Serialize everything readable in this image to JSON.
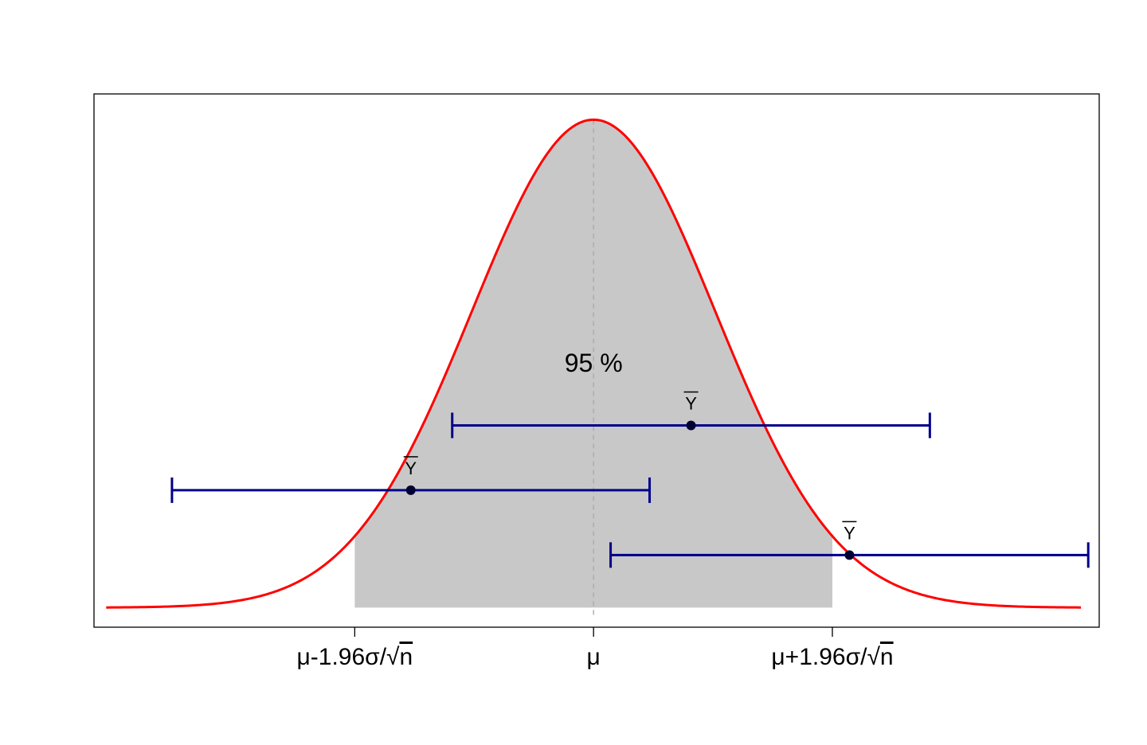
{
  "chart_data": {
    "type": "line",
    "title": "",
    "xlabel": "",
    "ylabel": "",
    "xlim": [
      -4.1,
      4.15
    ],
    "ylim": [
      -0.016,
      0.42
    ],
    "curve": {
      "name": "",
      "mean": 0,
      "sd": 1,
      "x_range": [
        -4,
        4
      ],
      "color": "#ff0000"
    },
    "shaded_region": {
      "from": -1.96,
      "to": 1.96,
      "color": "#c8c8c8",
      "label": "95 %",
      "label_pos": [
        0,
        0.2
      ]
    },
    "center_line": {
      "x": 0,
      "color": "#aaaaaa"
    },
    "x_ticks": [
      {
        "value": -1.96,
        "label_parts": [
          "μ-1.96σ/",
          "√",
          "n"
        ]
      },
      {
        "value": 0,
        "label_parts": [
          "μ",
          "",
          ""
        ]
      },
      {
        "value": 1.96,
        "label_parts": [
          "μ+1.96σ/",
          "√",
          "n"
        ]
      }
    ],
    "intervals": {
      "color": "#00008b",
      "point_color": "#000033",
      "point_label": "Y",
      "items": [
        {
          "center": 0.8,
          "lower": -1.16,
          "upper": 2.76,
          "y": 0.149
        },
        {
          "center": -1.5,
          "lower": -3.46,
          "upper": 0.46,
          "y": 0.096
        },
        {
          "center": 2.1,
          "lower": 0.14,
          "upper": 4.06,
          "y": 0.043
        }
      ]
    }
  }
}
